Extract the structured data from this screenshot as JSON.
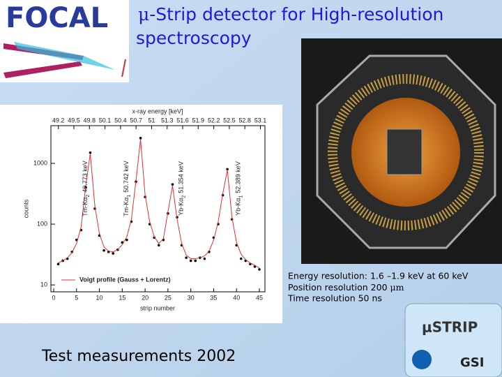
{
  "logo": "FOCAL",
  "title": {
    "greek": "μ",
    "line1": "-Strip detector for High-resolution",
    "line2": "spectroscopy"
  },
  "captions": [
    {
      "text": "Energy resolution: 1.6 –1.9 keV at 60 keV"
    },
    {
      "text": "Position resolution 200 ",
      "unit": "μm"
    },
    {
      "text": "Time resolution 50 ns"
    }
  ],
  "footer": "Test measurements 2002",
  "badge": {
    "name": "μSTRIP",
    "org": "GSI"
  },
  "chart_data": {
    "type": "scatter",
    "xlabel": "strip number",
    "ylabel": "counts",
    "x2label": "x-ray energy [keV]",
    "xlim": [
      0,
      45
    ],
    "xticks": [
      0,
      5,
      10,
      15,
      20,
      25,
      30,
      35,
      40,
      45
    ],
    "x2lim": [
      49.11,
      53.08
    ],
    "x2ticks": [
      49.2,
      49.5,
      49.8,
      50.1,
      50.4,
      50.7,
      51.0,
      51.3,
      51.6,
      51.9,
      52.2,
      52.5,
      52.8,
      53.1
    ],
    "ylim": [
      7.7,
      4170
    ],
    "yticks": [
      10,
      100,
      1000
    ],
    "log_y": true,
    "x": [
      1,
      2,
      3,
      4,
      5,
      6,
      7,
      8,
      9,
      10,
      11,
      12,
      13,
      14,
      15,
      16,
      17,
      18,
      19,
      20,
      21,
      22,
      23,
      24,
      25,
      26,
      27,
      28,
      29,
      30,
      31,
      32,
      33,
      34,
      35,
      36,
      37,
      38,
      39,
      40,
      41,
      42,
      43,
      44,
      45
    ],
    "series": [
      {
        "color": "#000000",
        "values": [
          22,
          25,
          27,
          35,
          55,
          80,
          400,
          1500,
          180,
          65,
          37,
          35,
          33,
          38,
          50,
          55,
          110,
          500,
          2600,
          280,
          100,
          60,
          45,
          55,
          150,
          450,
          130,
          45,
          28,
          25,
          25,
          28,
          27,
          35,
          60,
          100,
          300,
          800,
          120,
          45,
          27,
          25,
          22,
          20,
          18
        ]
      },
      {
        "name": "Voigt profile (Gauss + Lorentz)",
        "color": "#e03030",
        "values": [
          23,
          25,
          28,
          34,
          48,
          90,
          420,
          1450,
          200,
          70,
          42,
          36,
          35,
          38,
          46,
          62,
          120,
          520,
          2500,
          300,
          110,
          62,
          48,
          58,
          160,
          430,
          120,
          48,
          31,
          27,
          27,
          28,
          30,
          36,
          55,
          110,
          320,
          780,
          130,
          50,
          32,
          26,
          23,
          21,
          19
        ]
      }
    ],
    "annotations": [
      {
        "name": "Tm-Kα",
        "sub": "2",
        "energy": "49.773 keV",
        "x": 7
      },
      {
        "name": "Tm-Kα",
        "sub": "1",
        "energy": "50.742 keV",
        "x": 16
      },
      {
        "name": "Yb-Kα",
        "sub": "2",
        "energy": "51.354 keV",
        "x": 28
      },
      {
        "name": "Yb-Kα",
        "sub": "1",
        "energy": "52.389 keV",
        "x": 40.5
      }
    ]
  }
}
